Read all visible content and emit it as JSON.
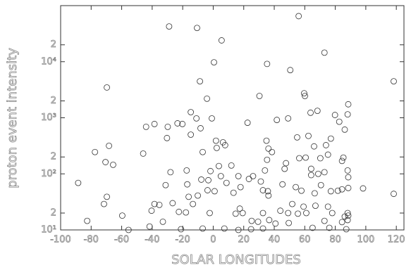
{
  "chart_data": {
    "type": "scatter",
    "x_label": "SOLAR LONGITUDES",
    "y_label": "proton event intensity",
    "log_y": true,
    "color": "#333333",
    "xlim": [
      -100,
      125
    ],
    "ylim": [
      10,
      100000
    ],
    "xticks": [
      -100,
      -80,
      -60,
      -40,
      -20,
      0,
      20,
      40,
      60,
      80,
      100,
      120
    ],
    "yticks": [
      {
        "value": 10,
        "label": "10¹"
      },
      {
        "value": 20,
        "label": "2"
      },
      {
        "value": 100,
        "label": "10²"
      },
      {
        "value": 200,
        "label": "2"
      },
      {
        "value": 1000,
        "label": "10³"
      },
      {
        "value": 2000,
        "label": "2"
      },
      {
        "value": 10000,
        "label": "10⁴"
      },
      {
        "value": 20000,
        "label": "2"
      }
    ],
    "x": [
      -88.5,
      -82.6,
      -77.5,
      -70.6,
      -71.6,
      -69.7,
      -68.3,
      -69.7,
      -65.6,
      -59.6,
      -55.5,
      -45.9,
      -44,
      -41.7,
      -40.4,
      -38.5,
      -38.5,
      -35.3,
      -33,
      -31.2,
      -30.3,
      -29.8,
      -28.9,
      -28,
      -26.6,
      -23.4,
      -22.5,
      -21.1,
      -20.2,
      -17.9,
      -17.4,
      -17,
      -16.1,
      -14.7,
      -14.7,
      -13.3,
      -11,
      -10.6,
      -10.1,
      -8.7,
      -8.3,
      -7.8,
      -6.9,
      -6.9,
      -4.1,
      -3.7,
      -3.2,
      -2.3,
      -1.8,
      -0.9,
      0.5,
      0.9,
      1.8,
      2.3,
      3.7,
      5,
      5.5,
      6.4,
      7.8,
      7.3,
      8.7,
      11.9,
      13.3,
      14.7,
      16.5,
      16.5,
      17.4,
      17.9,
      19.3,
      22.5,
      23.4,
      24.8,
      25.2,
      26.1,
      29.4,
      30.3,
      31.2,
      32.6,
      32.6,
      32.6,
      33.9,
      34.9,
      35.3,
      35.8,
      35.3,
      36.2,
      36.2,
      36.7,
      38.5,
      40.8,
      41.7,
      44,
      45.4,
      46.8,
      47.7,
      49.1,
      49.1,
      49.5,
      50.5,
      51.8,
      54.1,
      55,
      55.5,
      56,
      56.4,
      57.8,
      59.2,
      60.6,
      61,
      62.4,
      63.8,
      64.2,
      65.1,
      66.1,
      66.5,
      67,
      68.3,
      68.8,
      70.2,
      72.9,
      72.9,
      73.9,
      75.2,
      76.1,
      77.1,
      78,
      79.8,
      81.7,
      82.6,
      84.4,
      84.4,
      84.4,
      85.3,
      86.2,
      86.2,
      87.2,
      88.1,
      88.1,
      88.1,
      88.1,
      88.5,
      88.5,
      88.5,
      88.5,
      77.1,
      75.2,
      72.9,
      64.2,
      60.1,
      59.6,
      70.6,
      98.2,
      118.3,
      118.3
    ],
    "values": [
      69,
      14.5,
      245,
      162,
      29,
      39,
      316,
      3470,
      145,
      18,
      10,
      230,
      690,
      11.5,
      22,
      29,
      775,
      28,
      14,
      63,
      435,
      690,
      42500,
      107,
      30,
      795,
      21,
      10.3,
      775,
      20.5,
      115,
      65,
      39,
      500,
      1260,
      29,
      975,
      40000,
      41,
      4470,
      650,
      79,
      245,
      10.6,
      2190,
      51,
      77,
      20,
      112,
      975,
      9750,
      49,
      390,
      290,
      138,
      91,
      24000,
      365,
      325,
      10.6,
      69,
      141,
      46,
      19.5,
      91,
      10,
      24,
      58,
      20,
      815,
      81,
      10.3,
      14.5,
      91,
      14,
      2450,
      73,
      20,
      51,
      10.6,
      115,
      390,
      178,
      49,
      9130,
      41,
      282,
      15,
      245,
      13,
      915,
      22,
      65,
      123,
      155,
      20,
      975,
      13.3,
      7080,
      29,
      58,
      447,
      19.5,
      65000,
      190,
      50,
      26,
      195,
      20,
      475,
      1230,
      95,
      10.9,
      309,
      45,
      27,
      1330,
      100,
      190,
      107,
      14.5,
      325,
      26,
      10.9,
      49,
      20,
      1120,
      50,
      850,
      53,
      170,
      13.8,
      195,
      17.3,
      615,
      10.3,
      20,
      15,
      115,
      1150,
      87,
      1740,
      18,
      56,
      425,
      220,
      14500,
      123,
      2450,
      2740,
      63,
      55,
      4470,
      44
    ]
  }
}
